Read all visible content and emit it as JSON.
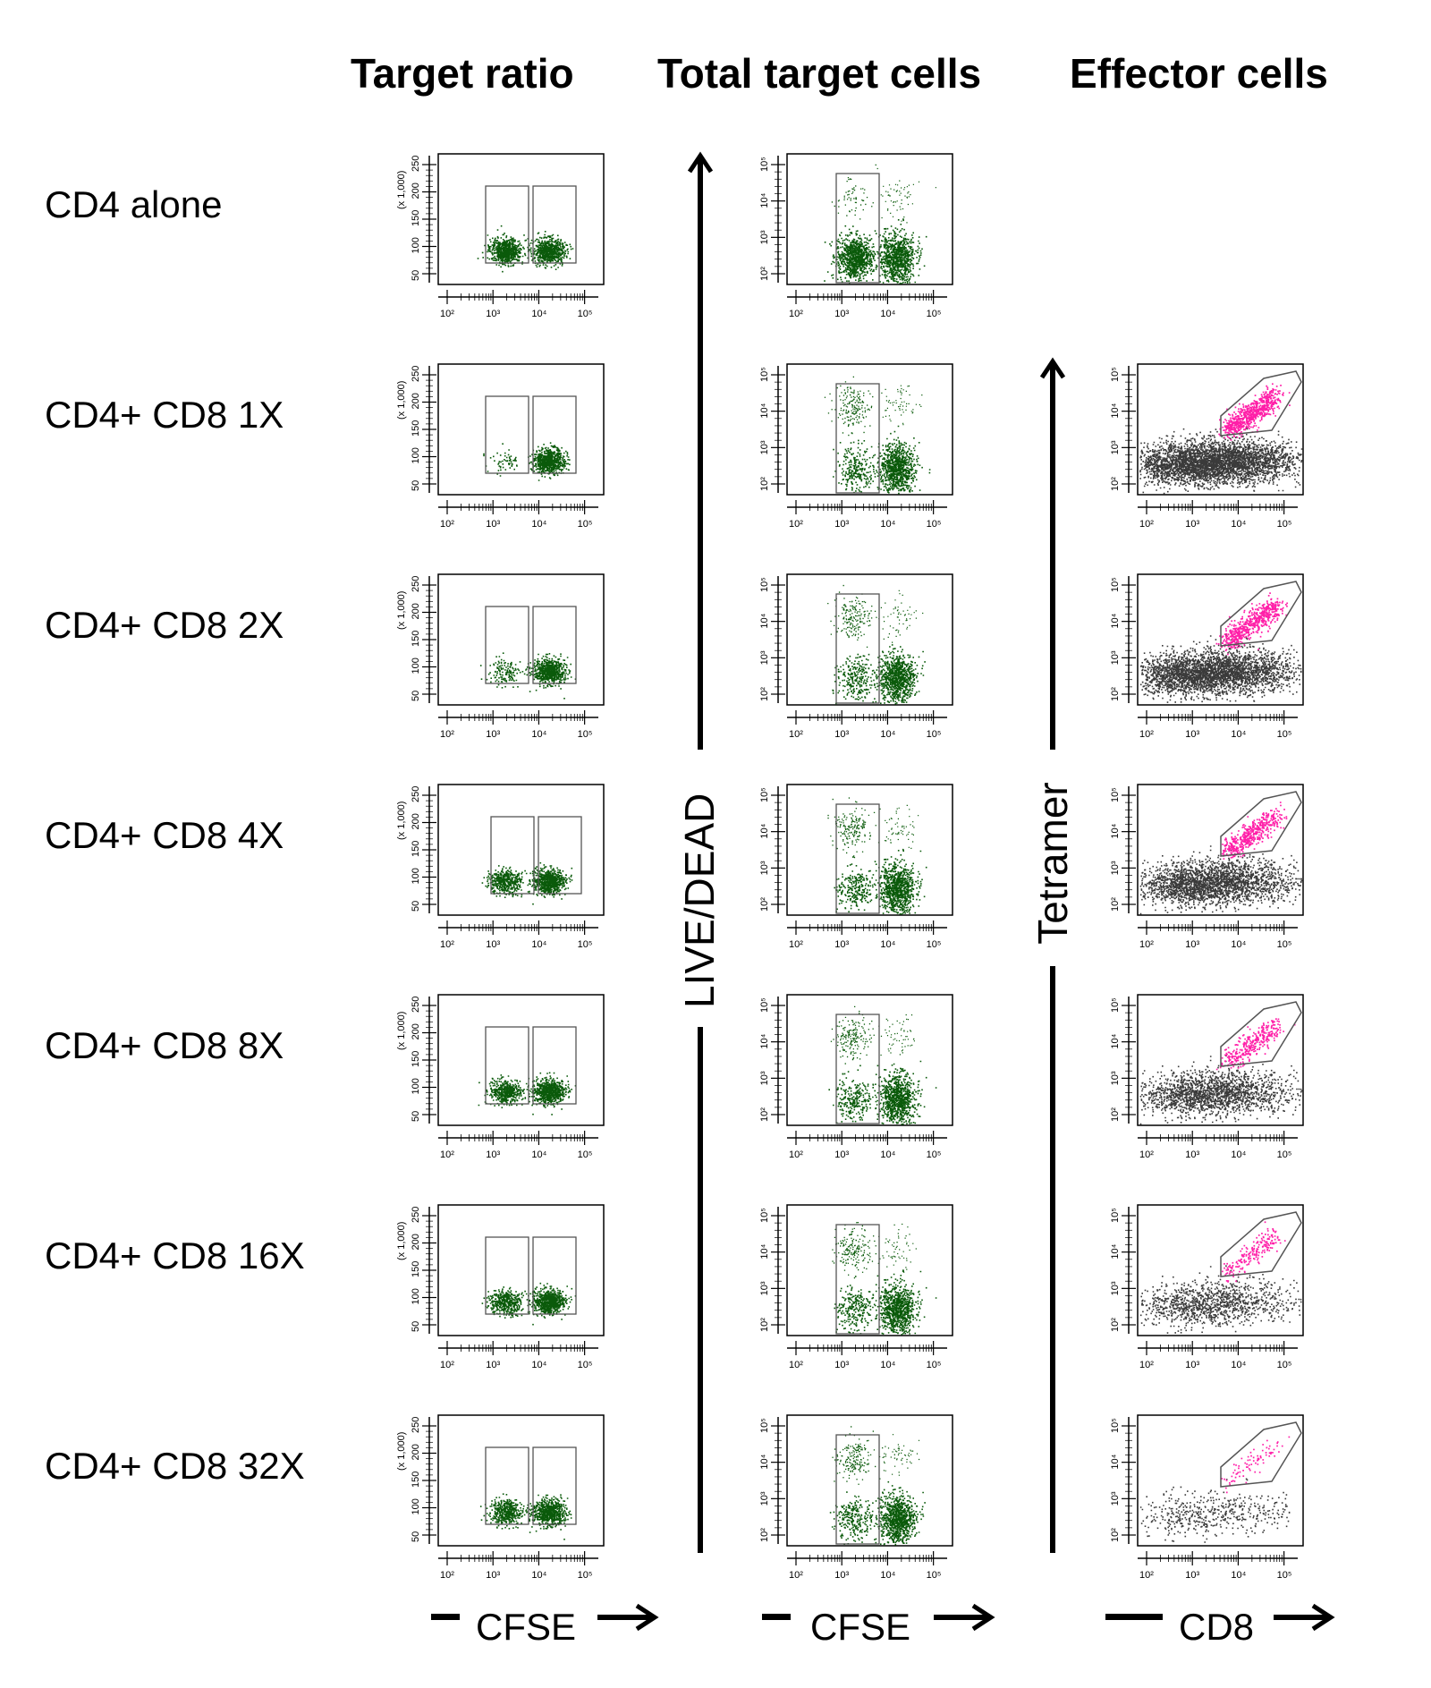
{
  "headers": {
    "target_ratio": "Target ratio",
    "total_target_cells": "Total target cells",
    "effector_cells": "Effector cells"
  },
  "rows": [
    {
      "label": "CD4 alone",
      "has_effector": false
    },
    {
      "label": "CD4+ CD8 1X",
      "has_effector": true
    },
    {
      "label": "CD4+ CD8 2X",
      "has_effector": true
    },
    {
      "label": "CD4+ CD8 4X",
      "has_effector": true
    },
    {
      "label": "CD4+ CD8 8X",
      "has_effector": true
    },
    {
      "label": "CD4+ CD8 16X",
      "has_effector": true
    },
    {
      "label": "CD4+ CD8 32X",
      "has_effector": true
    }
  ],
  "axes": {
    "x_bottom_1": "CFSE",
    "x_bottom_2": "CFSE",
    "x_bottom_3": "CD8",
    "y_middle": "LIVE/DEAD",
    "y_right": "Tetramer",
    "target_ratio_y_ticks": [
      "50",
      "100",
      "150",
      "200",
      "250"
    ],
    "target_ratio_y_unit": "(x 1,000)",
    "log_ticks": [
      "10²",
      "10³",
      "10⁴",
      "10⁵"
    ]
  },
  "colors": {
    "target_cells": "#0a5a0a",
    "effector_bg": "#3a3a3a",
    "tetramer_pos": "#ff1fa8",
    "gate": "#555555"
  }
}
